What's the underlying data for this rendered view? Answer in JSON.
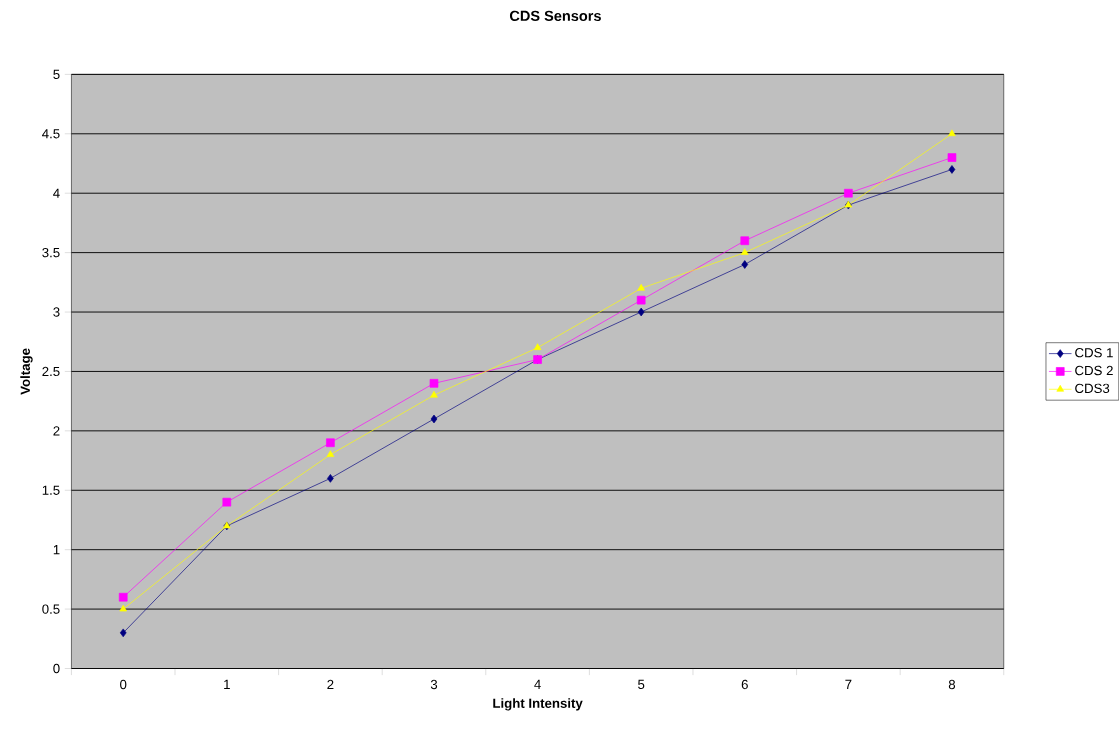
{
  "chart_data": {
    "type": "line",
    "title": "CDS Sensors",
    "xlabel": "Light Intensity",
    "ylabel": "Voltage",
    "categories": [
      "0",
      "1",
      "2",
      "3",
      "4",
      "5",
      "6",
      "7",
      "8"
    ],
    "series": [
      {
        "name": "CDS 1",
        "color": "#000080",
        "marker": "diamond",
        "values": [
          0.3,
          1.2,
          1.6,
          2.1,
          2.6,
          3.0,
          3.4,
          3.9,
          4.2
        ]
      },
      {
        "name": "CDS 2",
        "color": "#ff00ff",
        "marker": "square",
        "values": [
          0.6,
          1.4,
          1.9,
          2.4,
          2.6,
          3.1,
          3.6,
          4.0,
          4.3
        ]
      },
      {
        "name": "CDS3",
        "color": "#ffff00",
        "marker": "triangle",
        "values": [
          0.5,
          1.2,
          1.8,
          2.3,
          2.7,
          3.2,
          3.5,
          3.9,
          4.5
        ]
      }
    ],
    "ylim": [
      0,
      5
    ],
    "yticks": [
      0,
      0.5,
      1,
      1.5,
      2,
      2.5,
      3,
      3.5,
      4,
      4.5,
      5
    ],
    "grid": "y",
    "legend": "right",
    "line_style": "solid"
  }
}
